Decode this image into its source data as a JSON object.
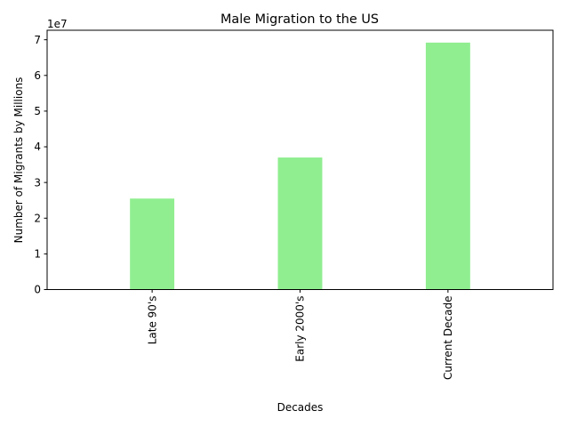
{
  "chart_data": {
    "type": "bar",
    "title": "Male Migration to the US",
    "xlabel": "Decades",
    "ylabel": "Number of Migrants by Millions",
    "categories": [
      "Late 90's",
      "Early 2000's",
      "Current Decade"
    ],
    "values": [
      25500000,
      37000000,
      69200000
    ],
    "ylim": [
      0,
      72660000
    ],
    "yticks": [
      0,
      10000000,
      20000000,
      30000000,
      40000000,
      50000000,
      60000000,
      70000000
    ],
    "ytick_labels": [
      "0",
      "1",
      "2",
      "3",
      "4",
      "5",
      "6",
      "7"
    ],
    "offset_label": "1e7",
    "bar_color": "#90ee90",
    "grid": false,
    "legend": "none",
    "xtick_rotation": "vertical"
  }
}
